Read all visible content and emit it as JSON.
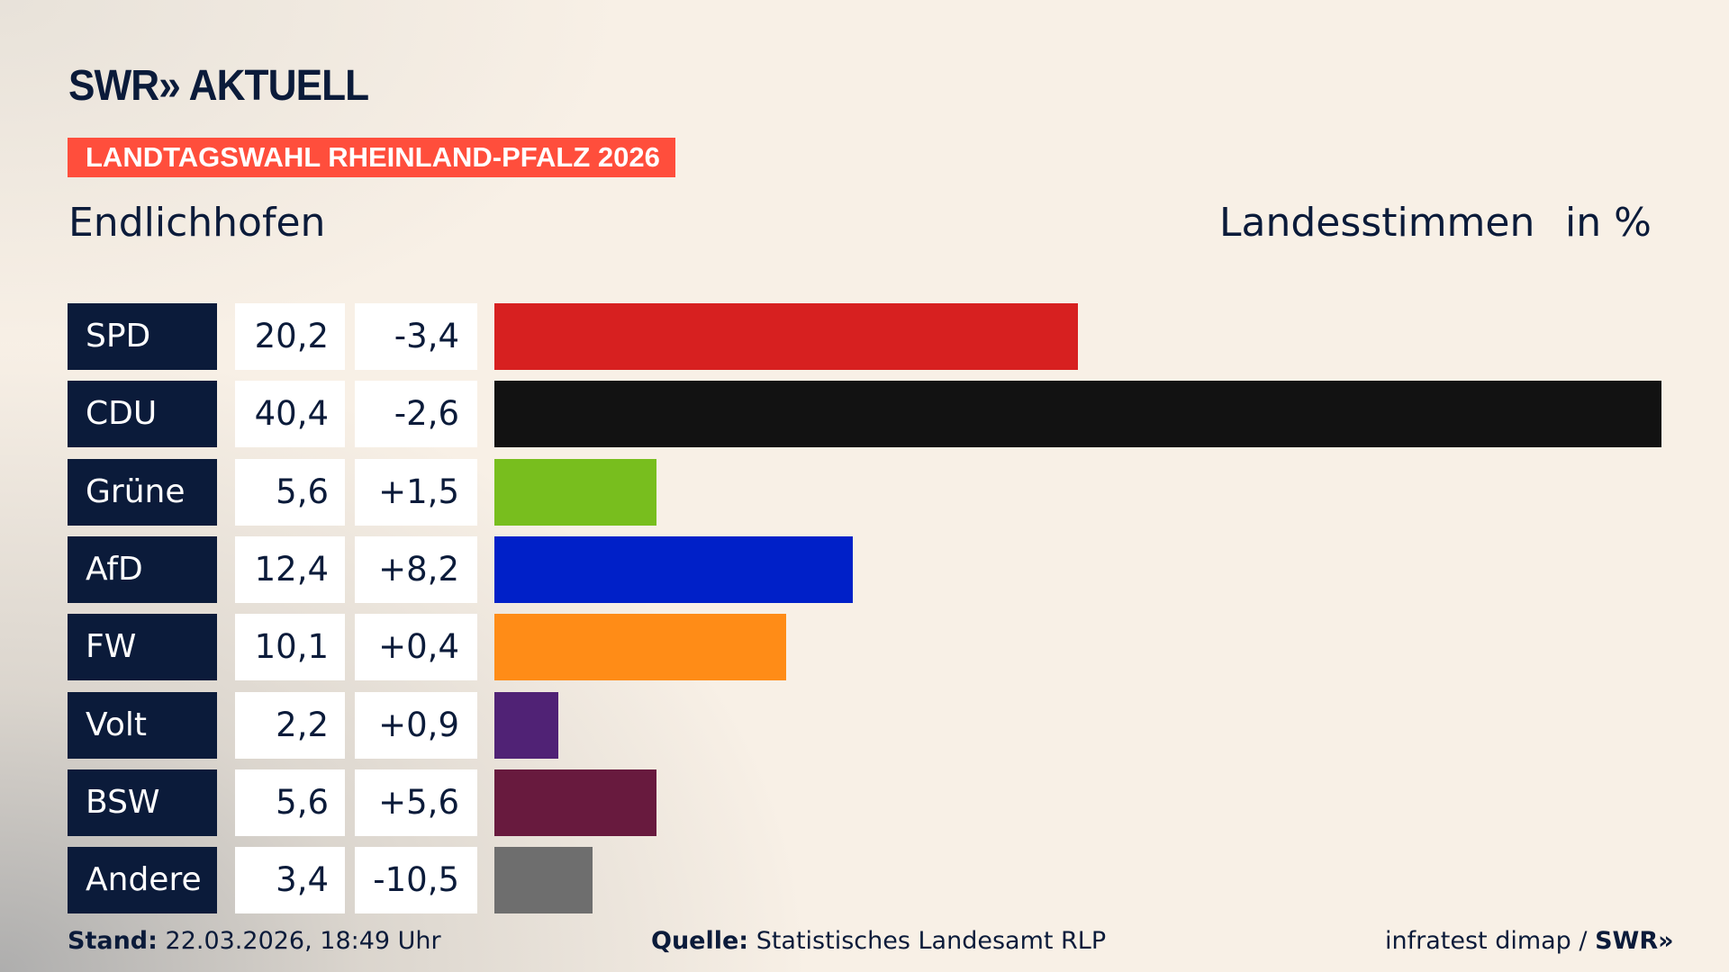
{
  "header": {
    "logo": "SWR» AKTUELL",
    "banner": "LANDTAGSWAHL RHEINLAND-PFALZ 2026",
    "place": "Endlichhofen",
    "metric": "Landesstimmen",
    "unit": "in %"
  },
  "colors": {
    "banner": "#ff4e3c",
    "party_box": "#0b1b3a"
  },
  "chart_data": {
    "type": "bar",
    "orientation": "horizontal",
    "categories": [
      "SPD",
      "CDU",
      "Grüne",
      "AfD",
      "FW",
      "Volt",
      "BSW",
      "Andere"
    ],
    "values": [
      "20,2",
      "40,4",
      "5,6",
      "12,4",
      "10,1",
      "2,2",
      "5,6",
      "3,4"
    ],
    "numeric_values": [
      20.2,
      40.4,
      5.6,
      12.4,
      10.1,
      2.2,
      5.6,
      3.4
    ],
    "changes": [
      "-3,4",
      "-2,6",
      "+1,5",
      "+8,2",
      "+0,4",
      "+0,9",
      "+5,6",
      "-10,5"
    ],
    "colors": [
      "#d72020",
      "#121212",
      "#78be1e",
      "#0020c8",
      "#ff8c17",
      "#502275",
      "#681a3e",
      "#6e6e6e"
    ],
    "xlim": [
      0,
      40.4
    ],
    "grid": false
  },
  "footer": {
    "stand_label": "Stand:",
    "stand_value": "22.03.2026, 18:49 Uhr",
    "source_label": "Quelle:",
    "source_value": "Statistisches Landesamt RLP",
    "credit": "infratest dimap /",
    "credit_logo": "SWR»"
  }
}
